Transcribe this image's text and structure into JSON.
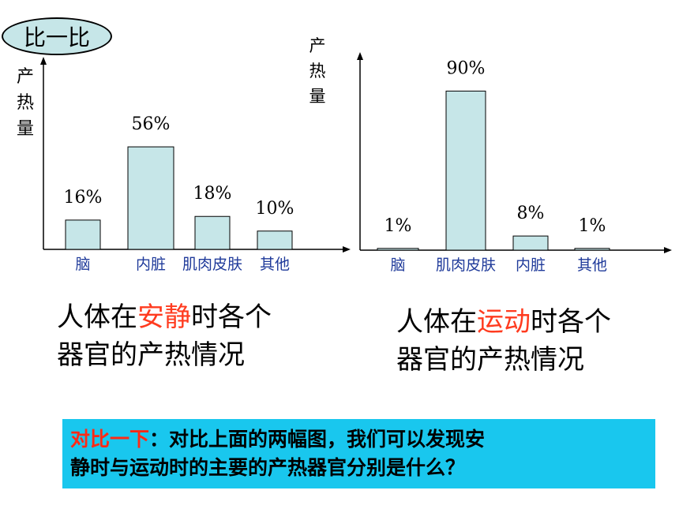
{
  "badge_label": "比一比",
  "chart_data": [
    {
      "type": "bar",
      "ylabel": "产热量",
      "categories": [
        "脑",
        "内脏",
        "肌肉皮肤",
        "其他"
      ],
      "values": [
        16,
        56,
        18,
        10
      ],
      "data_labels": [
        "16%",
        "56%",
        "18%",
        "10%"
      ],
      "ylim": [
        0,
        100
      ],
      "bar_color": "#c6e6e8",
      "category_color": "#1f3a9a",
      "grid": false
    },
    {
      "type": "bar",
      "ylabel": "产热量",
      "categories": [
        "脑",
        "肌肉皮肤",
        "内脏",
        "其他"
      ],
      "values": [
        1,
        90,
        8,
        1
      ],
      "data_labels": [
        "1%",
        "90%",
        "8%",
        "1%"
      ],
      "ylim": [
        0,
        100
      ],
      "bar_color": "#c6e6e8",
      "category_color": "#1f3a9a",
      "grid": false
    }
  ],
  "captions": {
    "left": {
      "prefix": "人体在",
      "highlight": "安静",
      "suffix": "时各个",
      "line2": "器官的产热情况"
    },
    "right": {
      "prefix": "人体在",
      "highlight": "运动",
      "suffix": "时各个",
      "line2": "器官的产热情况"
    }
  },
  "callout": {
    "highlight": "对比一下",
    "text1": "：对比上面的两幅图，我们可以发现安",
    "text2": "静时与运动时的主要的产热器官分别是什么？"
  },
  "colors": {
    "highlight": "#ff3b1f",
    "callout_bg": "#19c7ee"
  }
}
